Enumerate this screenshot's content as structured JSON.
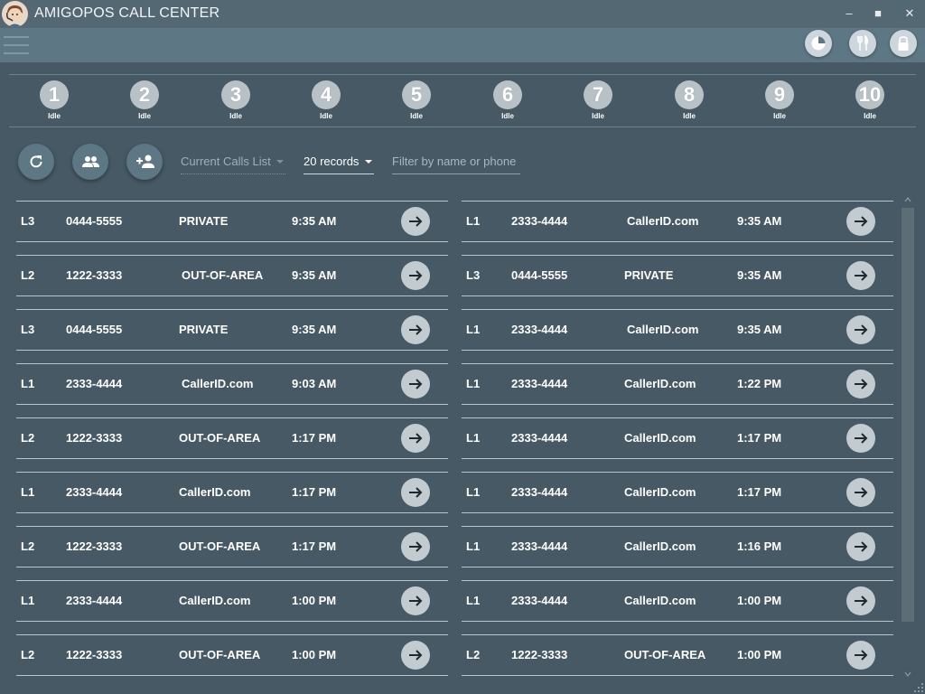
{
  "window": {
    "title": "AMIGOPOS CALL CENTER",
    "minimize_label": "‒",
    "maximize_label": "■",
    "close_label": "✕"
  },
  "toolbar": {
    "icons": [
      "pie-chart-icon",
      "fork-knife-icon",
      "lock-icon"
    ]
  },
  "lines": [
    {
      "number": "1",
      "status": "Idle"
    },
    {
      "number": "2",
      "status": "Idle"
    },
    {
      "number": "3",
      "status": "Idle"
    },
    {
      "number": "4",
      "status": "Idle"
    },
    {
      "number": "5",
      "status": "Idle"
    },
    {
      "number": "6",
      "status": "Idle"
    },
    {
      "number": "7",
      "status": "Idle"
    },
    {
      "number": "8",
      "status": "Idle"
    },
    {
      "number": "9",
      "status": "Idle"
    },
    {
      "number": "10",
      "status": "Idle"
    }
  ],
  "controls": {
    "list_type": "Current Calls List",
    "records": "20 records",
    "filter_placeholder": "Filter by name or phone"
  },
  "calls_left": [
    {
      "line": "L3",
      "phone": "0444-5555",
      "name": "PRIVATE",
      "time": "9:35 AM"
    },
    {
      "line": "L2",
      "phone": "1222-3333",
      "name": "OUT-OF-AREA",
      "time": "9:35 AM"
    },
    {
      "line": "L3",
      "phone": "0444-5555",
      "name": "PRIVATE",
      "time": "9:35 AM"
    },
    {
      "line": "L1",
      "phone": "2333-4444",
      "name": "CallerID.com",
      "time": "9:03 AM"
    },
    {
      "line": "L2",
      "phone": "1222-3333",
      "name": "OUT-OF-AREA",
      "time": "1:17 PM"
    },
    {
      "line": "L1",
      "phone": "2333-4444",
      "name": "CallerID.com",
      "time": "1:17 PM"
    },
    {
      "line": "L2",
      "phone": "1222-3333",
      "name": "OUT-OF-AREA",
      "time": "1:17 PM"
    },
    {
      "line": "L1",
      "phone": "2333-4444",
      "name": "CallerID.com",
      "time": "1:00 PM"
    },
    {
      "line": "L2",
      "phone": "1222-3333",
      "name": "OUT-OF-AREA",
      "time": "1:00 PM"
    }
  ],
  "calls_right": [
    {
      "line": "L1",
      "phone": "2333-4444",
      "name": "CallerID.com",
      "time": "9:35 AM"
    },
    {
      "line": "L3",
      "phone": "0444-5555",
      "name": "PRIVATE",
      "time": "9:35 AM"
    },
    {
      "line": "L1",
      "phone": "2333-4444",
      "name": "CallerID.com",
      "time": "9:35 AM"
    },
    {
      "line": "L1",
      "phone": "2333-4444",
      "name": "CallerID.com",
      "time": "1:22 PM"
    },
    {
      "line": "L1",
      "phone": "2333-4444",
      "name": "CallerID.com",
      "time": "1:17 PM"
    },
    {
      "line": "L1",
      "phone": "2333-4444",
      "name": "CallerID.com",
      "time": "1:17 PM"
    },
    {
      "line": "L1",
      "phone": "2333-4444",
      "name": "CallerID.com",
      "time": "1:16 PM"
    },
    {
      "line": "L1",
      "phone": "2333-4444",
      "name": "CallerID.com",
      "time": "1:00 PM"
    },
    {
      "line": "L2",
      "phone": "1222-3333",
      "name": "OUT-OF-AREA",
      "time": "1:00 PM"
    }
  ],
  "colors": {
    "background": "#465964",
    "titlebar": "#546874",
    "toolbar": "#5d7784",
    "line_badge": "#b7c1c6",
    "row_border": "#b9c4ca",
    "go_button": "#c1cbd0"
  }
}
